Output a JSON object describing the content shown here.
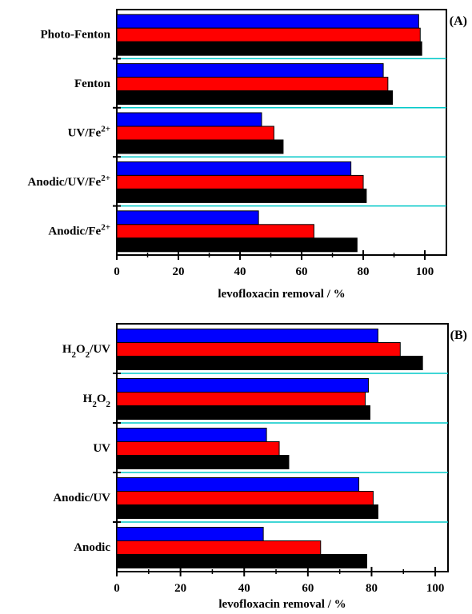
{
  "chart_data": [
    {
      "type": "bar",
      "orientation": "horizontal",
      "panel_label": "(A)",
      "categories": [
        "Photo-Fenton",
        "Fenton",
        "UV/Fe2+",
        "Anodic/UV/Fe2+",
        "Anodic/Fe2+"
      ],
      "category_labels": [
        {
          "base": "Photo-Fenton",
          "sup": ""
        },
        {
          "base": "Fenton",
          "sup": ""
        },
        {
          "base": "UV/Fe",
          "sup": "2+"
        },
        {
          "base": "Anodic/UV/Fe",
          "sup": "2+"
        },
        {
          "base": "Anodic/Fe",
          "sup": "2+"
        }
      ],
      "series": [
        {
          "color": "#0000ff",
          "values": [
            98,
            86.5,
            47,
            76,
            46
          ]
        },
        {
          "color": "#ff0000",
          "values": [
            98.5,
            88,
            51,
            80,
            64
          ]
        },
        {
          "color": "#000000",
          "values": [
            99,
            89.5,
            54,
            81,
            78
          ]
        }
      ],
      "xlabel": "levofloxacin removal / %",
      "xlim": [
        0,
        107
      ],
      "xticks": [
        0,
        20,
        40,
        60,
        80,
        100
      ],
      "separator_color": "#00c8c8"
    },
    {
      "type": "bar",
      "orientation": "horizontal",
      "panel_label": "(B)",
      "categories": [
        "H2O2/UV",
        "H2O2",
        "UV",
        "Anodic/UV",
        "Anodic"
      ],
      "category_labels": [
        {
          "parts": [
            {
              "t": "H"
            },
            {
              "t": "2",
              "sub": true
            },
            {
              "t": "O"
            },
            {
              "t": "2",
              "sub": true
            },
            {
              "t": "/UV"
            }
          ]
        },
        {
          "parts": [
            {
              "t": "H"
            },
            {
              "t": "2",
              "sub": true
            },
            {
              "t": "O"
            },
            {
              "t": "2",
              "sub": true
            }
          ]
        },
        {
          "parts": [
            {
              "t": "UV"
            }
          ]
        },
        {
          "parts": [
            {
              "t": "Anodic/UV"
            }
          ]
        },
        {
          "parts": [
            {
              "t": "Anodic"
            }
          ]
        }
      ],
      "series": [
        {
          "color": "#0000ff",
          "values": [
            82,
            79,
            47,
            76,
            46
          ]
        },
        {
          "color": "#ff0000",
          "values": [
            89,
            78,
            51,
            80.5,
            64
          ]
        },
        {
          "color": "#000000",
          "values": [
            96,
            79.5,
            54,
            82,
            78.5
          ]
        }
      ],
      "xlabel": "levofloxacin removal / %",
      "xlim": [
        0,
        104
      ],
      "xticks": [
        0,
        20,
        40,
        60,
        80,
        100
      ],
      "separator_color": "#00c8c8"
    }
  ]
}
